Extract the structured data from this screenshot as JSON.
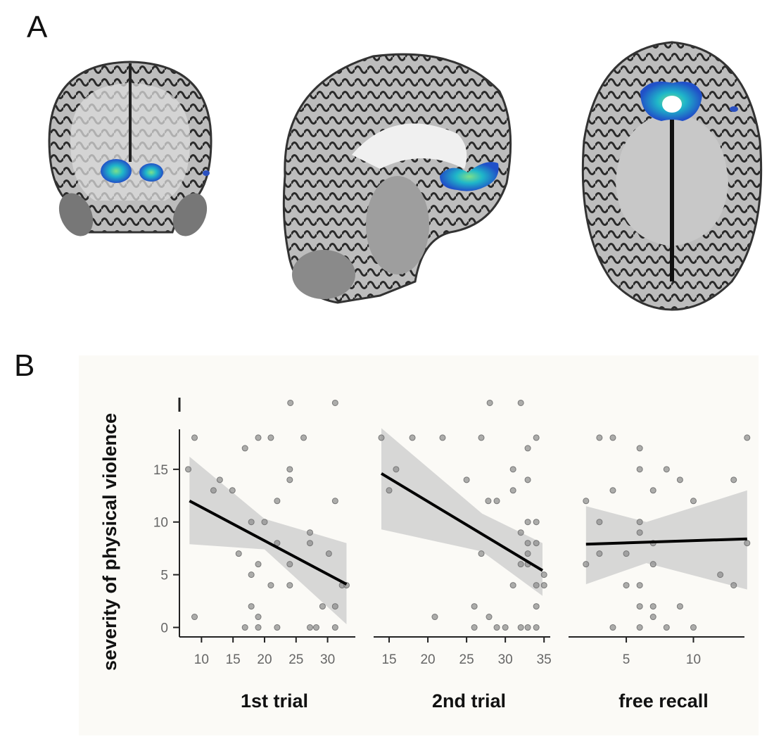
{
  "panels": {
    "a_label": "A",
    "b_label": "B"
  },
  "brain_views": [
    {
      "view": "coronal",
      "highlight_color": "#2f6fd6"
    },
    {
      "view": "sagittal",
      "highlight_color": "#2f6fd6"
    },
    {
      "view": "axial",
      "highlight_color": "#2f6fd6"
    }
  ],
  "colors": {
    "point": "#8a8a8a",
    "point_dark": "#555555",
    "line": "#000000",
    "ci_band": "#d3d3d3",
    "plot_bg": "#fbfaf6"
  },
  "chart_data": [
    {
      "type": "scatter",
      "xlabel": "1st trial",
      "ylabel": "severity of physical violence",
      "xticks": [
        10,
        15,
        20,
        25,
        30
      ],
      "yticks": [
        0,
        5,
        10,
        15
      ],
      "xlim": [
        6.5,
        34.4
      ],
      "ylim": [
        -0.9,
        21.8
      ],
      "grid": false,
      "points": [
        [
          24.1,
          21.3
        ],
        [
          31.2,
          21.3
        ],
        [
          8.9,
          18
        ],
        [
          19,
          18
        ],
        [
          21,
          18
        ],
        [
          26.2,
          18
        ],
        [
          16.9,
          17
        ],
        [
          7.9,
          15
        ],
        [
          24,
          15
        ],
        [
          12.9,
          14
        ],
        [
          24,
          14
        ],
        [
          11.9,
          13
        ],
        [
          14.9,
          13
        ],
        [
          22,
          12
        ],
        [
          31.2,
          12
        ],
        [
          17.9,
          10
        ],
        [
          20,
          10
        ],
        [
          27.2,
          9
        ],
        [
          22,
          8
        ],
        [
          27.2,
          8
        ],
        [
          15.9,
          7
        ],
        [
          30.2,
          7
        ],
        [
          19,
          6
        ],
        [
          24,
          6
        ],
        [
          17.9,
          5
        ],
        [
          21,
          4
        ],
        [
          24,
          4
        ],
        [
          32.3,
          4
        ],
        [
          33,
          4
        ],
        [
          17.9,
          2
        ],
        [
          29.2,
          2
        ],
        [
          31.2,
          2
        ],
        [
          8.9,
          1
        ],
        [
          19,
          1
        ],
        [
          16.9,
          0
        ],
        [
          19,
          0
        ],
        [
          22,
          0
        ],
        [
          27.2,
          0
        ],
        [
          28.2,
          0
        ],
        [
          31.2,
          0
        ]
      ],
      "fit_line": [
        [
          8.1,
          12.0
        ],
        [
          33,
          4.1
        ]
      ],
      "ci_band": {
        "x": [
          8.1,
          20,
          33
        ],
        "upper": [
          16.2,
          10.3,
          8.0
        ],
        "lower": [
          7.9,
          7.4,
          0.3
        ]
      }
    },
    {
      "type": "scatter",
      "xlabel": "2nd trial",
      "xticks": [
        15,
        20,
        25,
        30,
        35
      ],
      "xlim": [
        13,
        35.8
      ],
      "ylim": [
        -0.9,
        21.8
      ],
      "grid": false,
      "points": [
        [
          28,
          21.3
        ],
        [
          32,
          21.3
        ],
        [
          14,
          18
        ],
        [
          18,
          18
        ],
        [
          21.9,
          18
        ],
        [
          26.9,
          18
        ],
        [
          34,
          18
        ],
        [
          32.9,
          17
        ],
        [
          15.9,
          15
        ],
        [
          31,
          15
        ],
        [
          25,
          14
        ],
        [
          32.9,
          14
        ],
        [
          15,
          13
        ],
        [
          31,
          13
        ],
        [
          27.8,
          12
        ],
        [
          28.9,
          12
        ],
        [
          32.9,
          10
        ],
        [
          34,
          10
        ],
        [
          32,
          9
        ],
        [
          32.9,
          8
        ],
        [
          34,
          8
        ],
        [
          26.9,
          7
        ],
        [
          32.9,
          7
        ],
        [
          32,
          6
        ],
        [
          32.9,
          6
        ],
        [
          35,
          5
        ],
        [
          31,
          4
        ],
        [
          34,
          4
        ],
        [
          35,
          4
        ],
        [
          26,
          2
        ],
        [
          34,
          2
        ],
        [
          20.9,
          1
        ],
        [
          27.9,
          1
        ],
        [
          26,
          0
        ],
        [
          28.9,
          0
        ],
        [
          30,
          0
        ],
        [
          32,
          0
        ],
        [
          32.9,
          0
        ],
        [
          34,
          0
        ]
      ],
      "fit_line": [
        [
          14,
          14.6
        ],
        [
          34.8,
          5.4
        ]
      ],
      "ci_band": {
        "x": [
          14,
          27,
          34.8
        ],
        "upper": [
          18.9,
          10.8,
          8.0
        ],
        "lower": [
          9.3,
          7.2,
          3.0
        ]
      }
    },
    {
      "type": "scatter",
      "xlabel": "free recall",
      "xticks": [
        5,
        10
      ],
      "xlim": [
        0.7,
        13.8
      ],
      "ylim": [
        -0.9,
        21.8
      ],
      "grid": false,
      "points": [
        [
          3,
          18
        ],
        [
          4,
          18
        ],
        [
          14,
          18
        ],
        [
          6,
          17
        ],
        [
          6,
          15
        ],
        [
          8,
          15
        ],
        [
          9,
          14
        ],
        [
          13,
          14
        ],
        [
          4,
          13
        ],
        [
          7,
          13
        ],
        [
          2,
          12
        ],
        [
          10,
          12
        ],
        [
          3,
          10
        ],
        [
          6,
          10
        ],
        [
          6,
          9
        ],
        [
          14,
          8
        ],
        [
          7,
          8
        ],
        [
          3,
          7
        ],
        [
          5,
          7
        ],
        [
          2,
          6
        ],
        [
          7,
          6
        ],
        [
          12,
          5
        ],
        [
          5,
          4
        ],
        [
          6,
          4
        ],
        [
          13,
          4
        ],
        [
          6,
          2
        ],
        [
          7,
          2
        ],
        [
          9,
          2
        ],
        [
          7,
          1
        ],
        [
          4,
          0
        ],
        [
          6,
          0
        ],
        [
          8,
          0
        ],
        [
          10,
          0
        ]
      ],
      "fit_line": [
        [
          2,
          7.9
        ],
        [
          14,
          8.4
        ]
      ],
      "ci_band": {
        "x": [
          2,
          6.5,
          14
        ],
        "upper": [
          11.5,
          10.0,
          13.0
        ],
        "lower": [
          4.1,
          6.1,
          3.6
        ]
      }
    }
  ]
}
